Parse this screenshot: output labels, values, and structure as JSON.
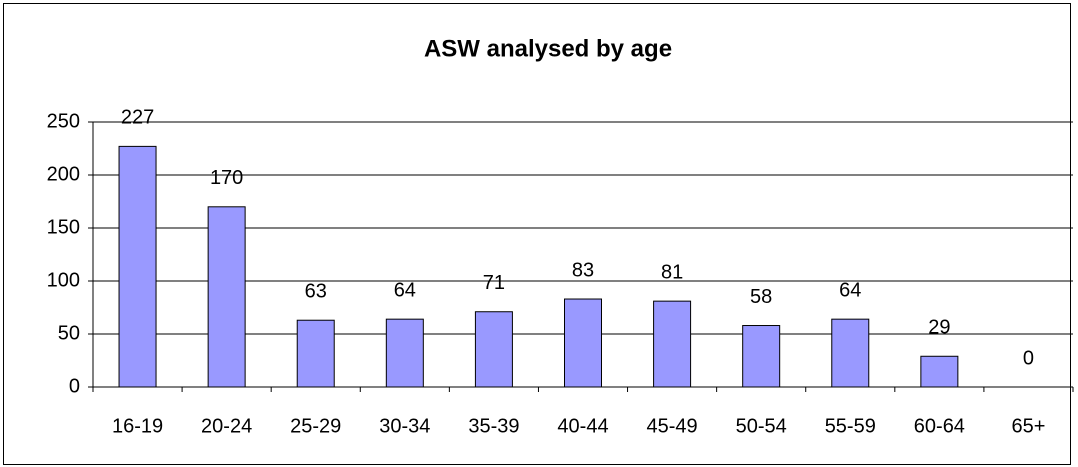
{
  "chart_data": {
    "type": "bar",
    "title": "ASW analysed by age",
    "categories": [
      "16-19",
      "20-24",
      "25-29",
      "30-34",
      "35-39",
      "40-44",
      "45-49",
      "50-54",
      "55-59",
      "60-64",
      "65+"
    ],
    "values": [
      227,
      170,
      63,
      64,
      71,
      83,
      81,
      58,
      64,
      29,
      0
    ],
    "color": "#9999ff",
    "ylim": [
      0,
      250
    ],
    "yticks": [
      0,
      50,
      100,
      150,
      200,
      250
    ],
    "grid": true
  }
}
